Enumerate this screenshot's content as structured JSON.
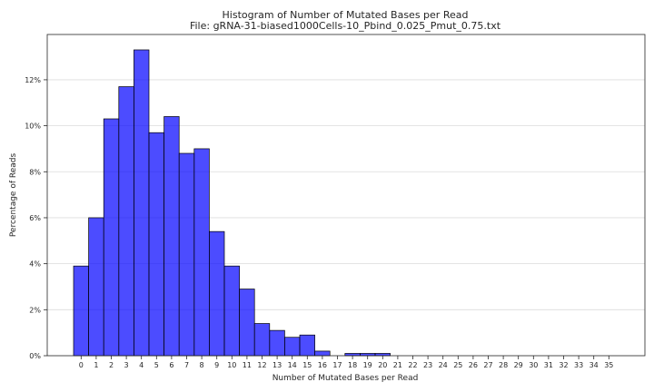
{
  "chart_data": {
    "type": "bar",
    "title": "Histogram of Number of Mutated Bases per Read",
    "subtitle": "File: gRNA-31-biased1000Cells-10_Pbind_0.025_Pmut_0.75.txt",
    "xlabel": "Number of Mutated Bases per Read",
    "ylabel": "Percentage of Reads",
    "categories": [
      "0",
      "1",
      "2",
      "3",
      "4",
      "5",
      "6",
      "7",
      "8",
      "9",
      "10",
      "11",
      "12",
      "13",
      "14",
      "15",
      "16",
      "17",
      "18",
      "19",
      "20",
      "21",
      "22",
      "23",
      "24",
      "25",
      "26",
      "27",
      "28",
      "29",
      "30",
      "31",
      "32",
      "33",
      "34",
      "35"
    ],
    "values": [
      3.9,
      6.0,
      10.3,
      11.7,
      13.3,
      9.7,
      10.4,
      8.8,
      9.0,
      5.4,
      3.9,
      2.9,
      1.4,
      1.1,
      0.8,
      0.9,
      0.2,
      0.0,
      0.1,
      0.1,
      0.1,
      0,
      0,
      0,
      0,
      0,
      0,
      0,
      0,
      0,
      0,
      0,
      0,
      0,
      0,
      0
    ],
    "ylim": [
      0,
      13.97
    ],
    "yticks": [
      0,
      2,
      4,
      6,
      8,
      10,
      12
    ],
    "ytick_labels": [
      "0%",
      "2%",
      "4%",
      "6%",
      "8%",
      "10%",
      "12%"
    ],
    "grid": "horizontal",
    "bar_color": "#0000ff",
    "bar_opacity": 0.7,
    "edge_color": "#000000"
  }
}
